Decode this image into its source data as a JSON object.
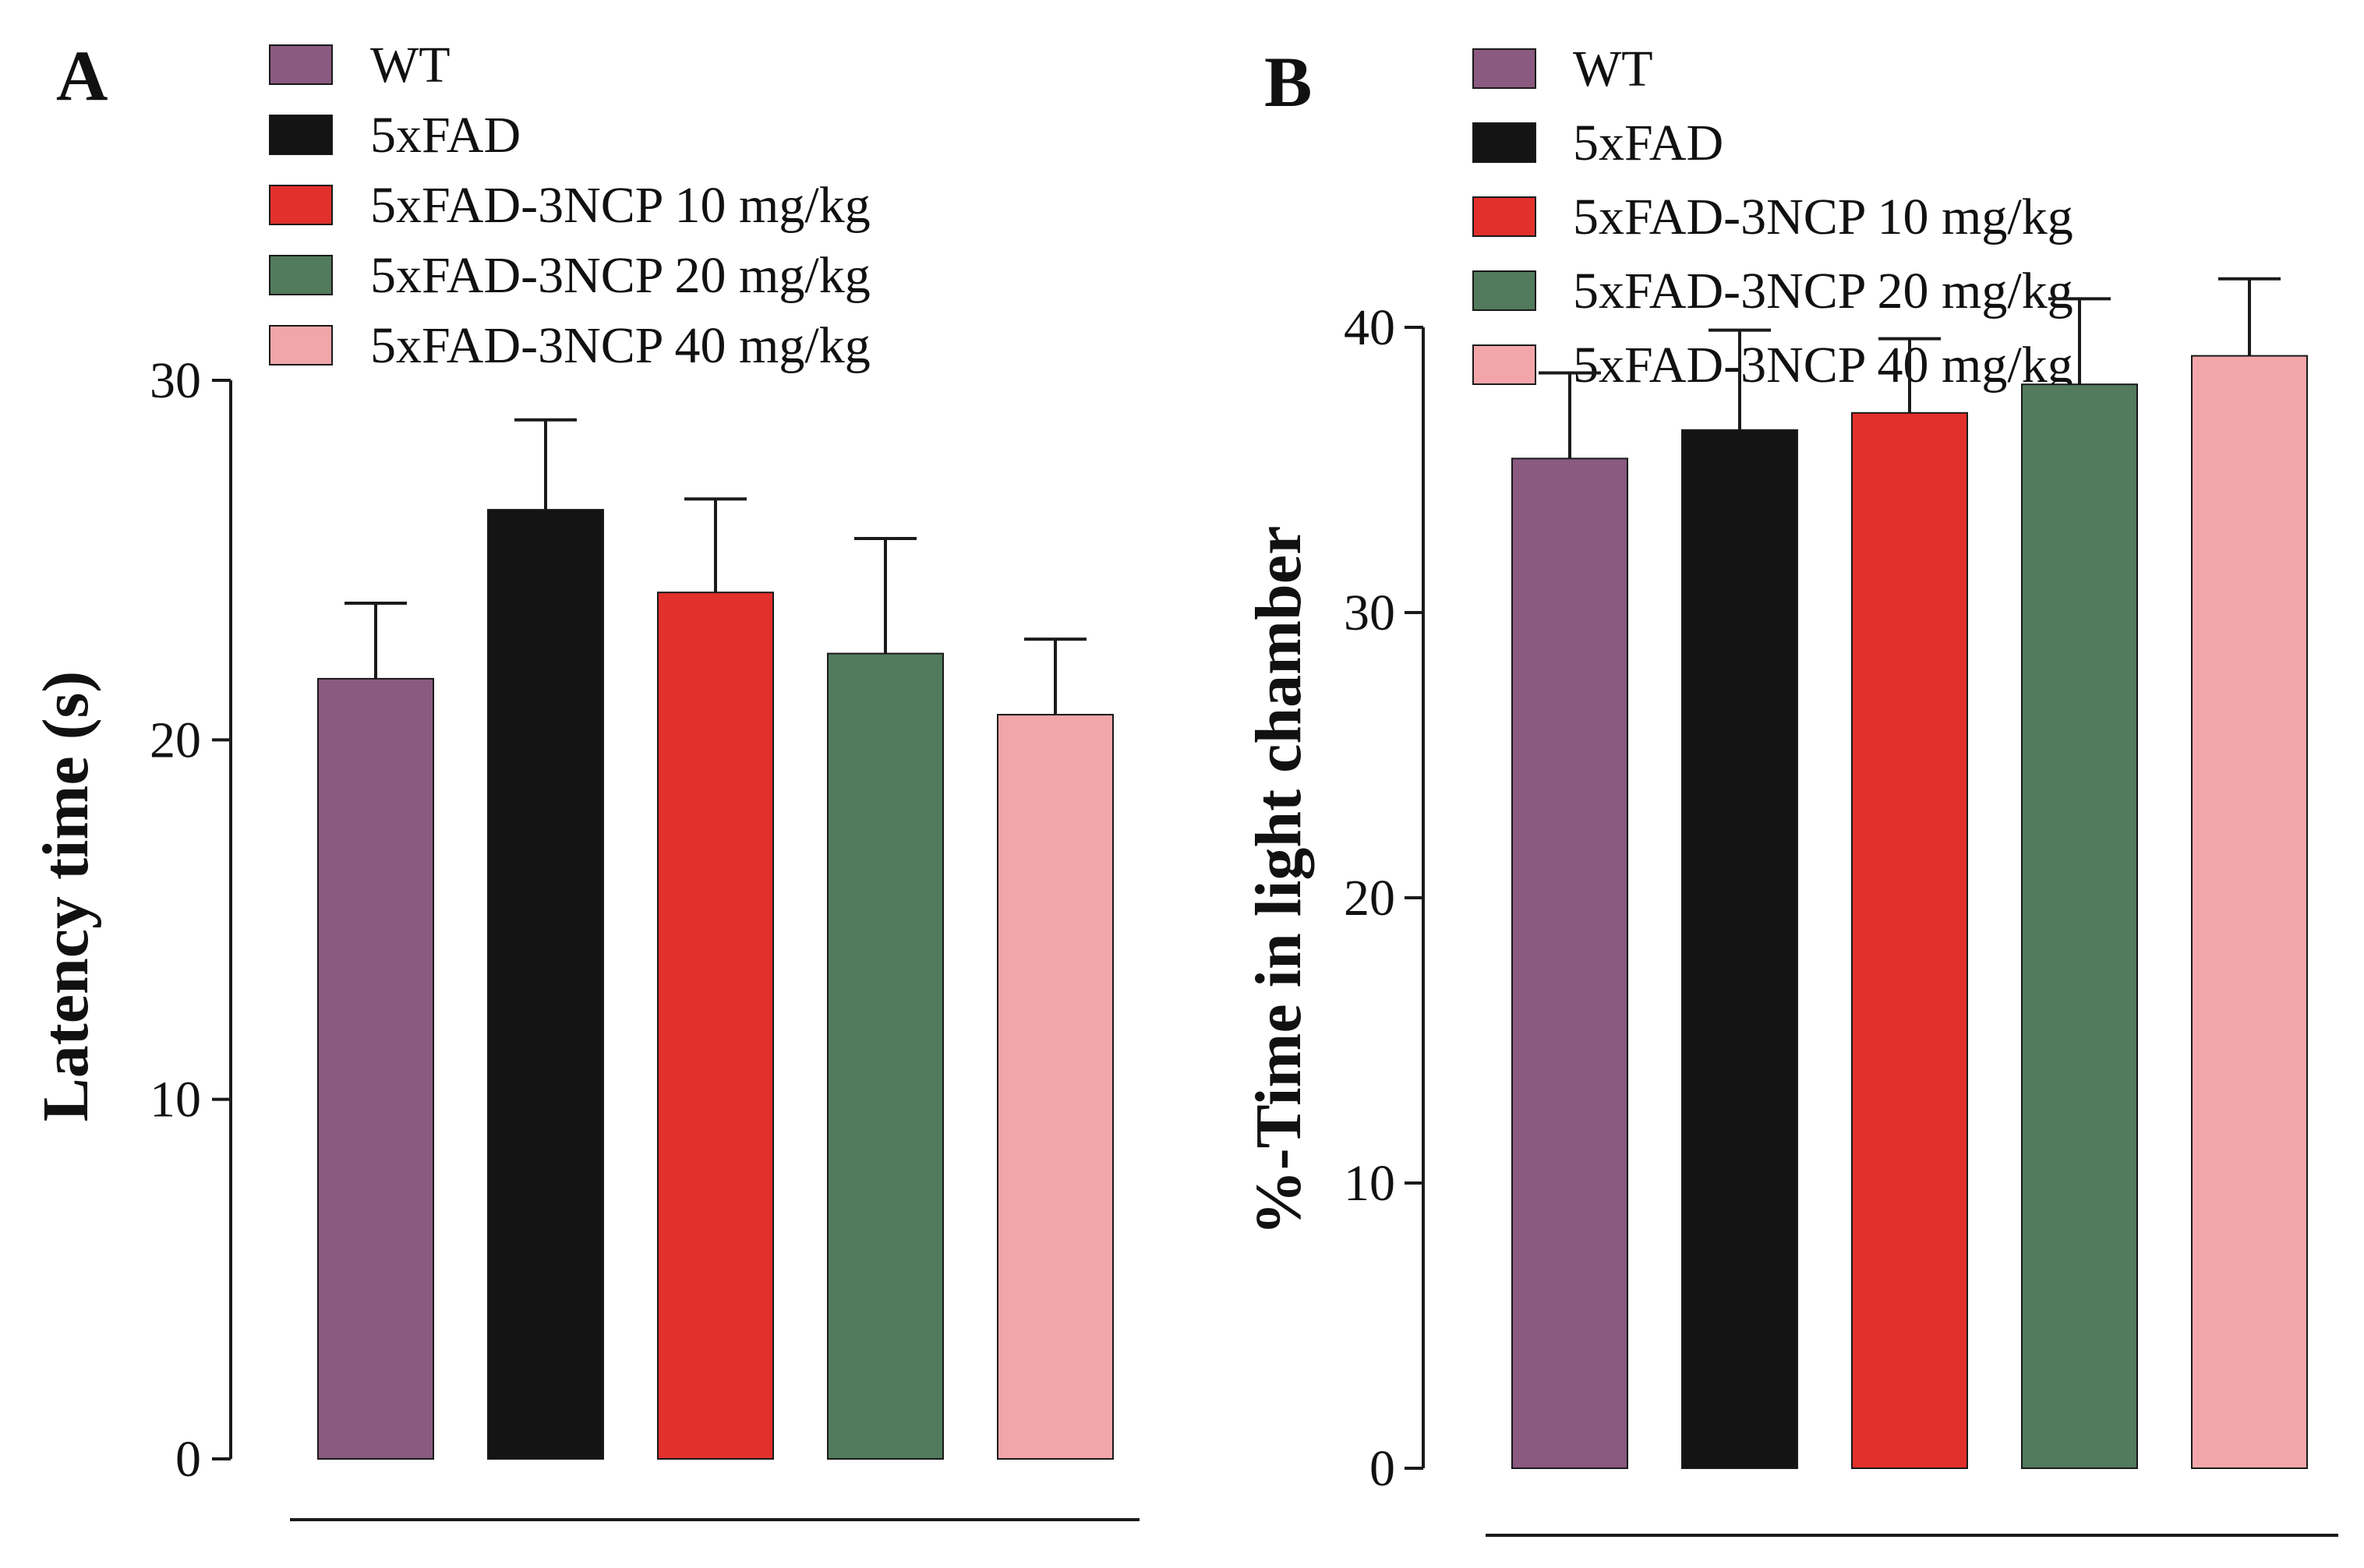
{
  "colors": {
    "wt": "#8a5a80",
    "fad": "#141414",
    "ncp10": "#e2302c",
    "ncp20": "#527a5d",
    "ncp40": "#f2a6aa",
    "stroke": "#1a1a1a"
  },
  "chart_data": [
    {
      "type": "bar",
      "panel": "A",
      "title": "",
      "xlabel": "",
      "ylabel": "Latency time (s)",
      "ylim": [
        0,
        30
      ],
      "yticks": [
        "0",
        "10",
        "20",
        "30"
      ],
      "grid": false,
      "legend_position": "top-left",
      "categories": [
        "WT",
        "5xFAD",
        "5xFAD-3NCP 10 mg/kg",
        "5xFAD-3NCP 20 mg/kg",
        "5xFAD-3NCP 40 mg/kg"
      ],
      "values": [
        21.7,
        26.4,
        24.1,
        22.4,
        20.7
      ],
      "errors": [
        2.1,
        2.5,
        2.6,
        3.2,
        2.1
      ]
    },
    {
      "type": "bar",
      "panel": "B",
      "title": "",
      "xlabel": "",
      "ylabel": "%-Time in light chamber",
      "ylim": [
        0,
        40
      ],
      "yticks": [
        "0",
        "10",
        "20",
        "30",
        "40"
      ],
      "grid": false,
      "legend_position": "top-left",
      "categories": [
        "WT",
        "5xFAD",
        "5xFAD-3NCP 10 mg/kg",
        "5xFAD-3NCP 20 mg/kg",
        "5xFAD-3NCP 40 mg/kg"
      ],
      "values": [
        35.4,
        36.4,
        37.0,
        38.0,
        39.0
      ],
      "errors": [
        3.0,
        3.5,
        2.6,
        3.0,
        2.7
      ]
    }
  ]
}
